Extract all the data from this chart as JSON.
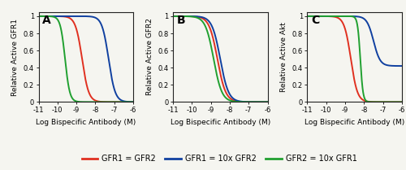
{
  "xlim": [
    -11,
    -6
  ],
  "ylim": [
    0,
    1.05
  ],
  "xticks": [
    -11,
    -10,
    -9,
    -8,
    -7,
    -6
  ],
  "yticks": [
    0,
    0.2,
    0.4,
    0.6,
    0.8,
    1.0
  ],
  "xlabel": "Log Bispecific Antibody (M)",
  "ylabel_A": "Relative Active GFR1",
  "ylabel_B": "Relative Active GFR2",
  "ylabel_C": "Relative Active Akt",
  "color_red": "#E03020",
  "color_blue": "#1040A0",
  "color_green": "#20A030",
  "legend_labels": [
    "GFR1 = GFR2",
    "GFR1 = 10x GFR2",
    "GFR2 = 10x GFR1"
  ],
  "background_color": "#f5f5f0",
  "panel_label_fontsize": 10,
  "axis_label_fontsize": 6.5,
  "tick_fontsize": 6.0,
  "legend_fontsize": 7.0,
  "A_red_ec50_log": -8.7,
  "A_red_hill": 2.5,
  "A_blue_ec50_log": -7.3,
  "A_blue_hill": 2.5,
  "A_green_ec50_log": -9.6,
  "A_green_hill": 3.5,
  "B_red_ec50_log": -8.65,
  "B_red_hill": 2.0,
  "B_blue_ec50_log": -8.5,
  "B_blue_hill": 2.0,
  "B_green_ec50_log": -8.85,
  "B_green_hill": 2.0,
  "C_red_ec50_log": -8.7,
  "C_red_hill": 2.5,
  "C_blue_ec50_log": -7.5,
  "C_blue_floor": 0.42,
  "C_blue_hill": 2.5,
  "C_green_ec50_log": -8.2,
  "C_green_hill": 6.0
}
